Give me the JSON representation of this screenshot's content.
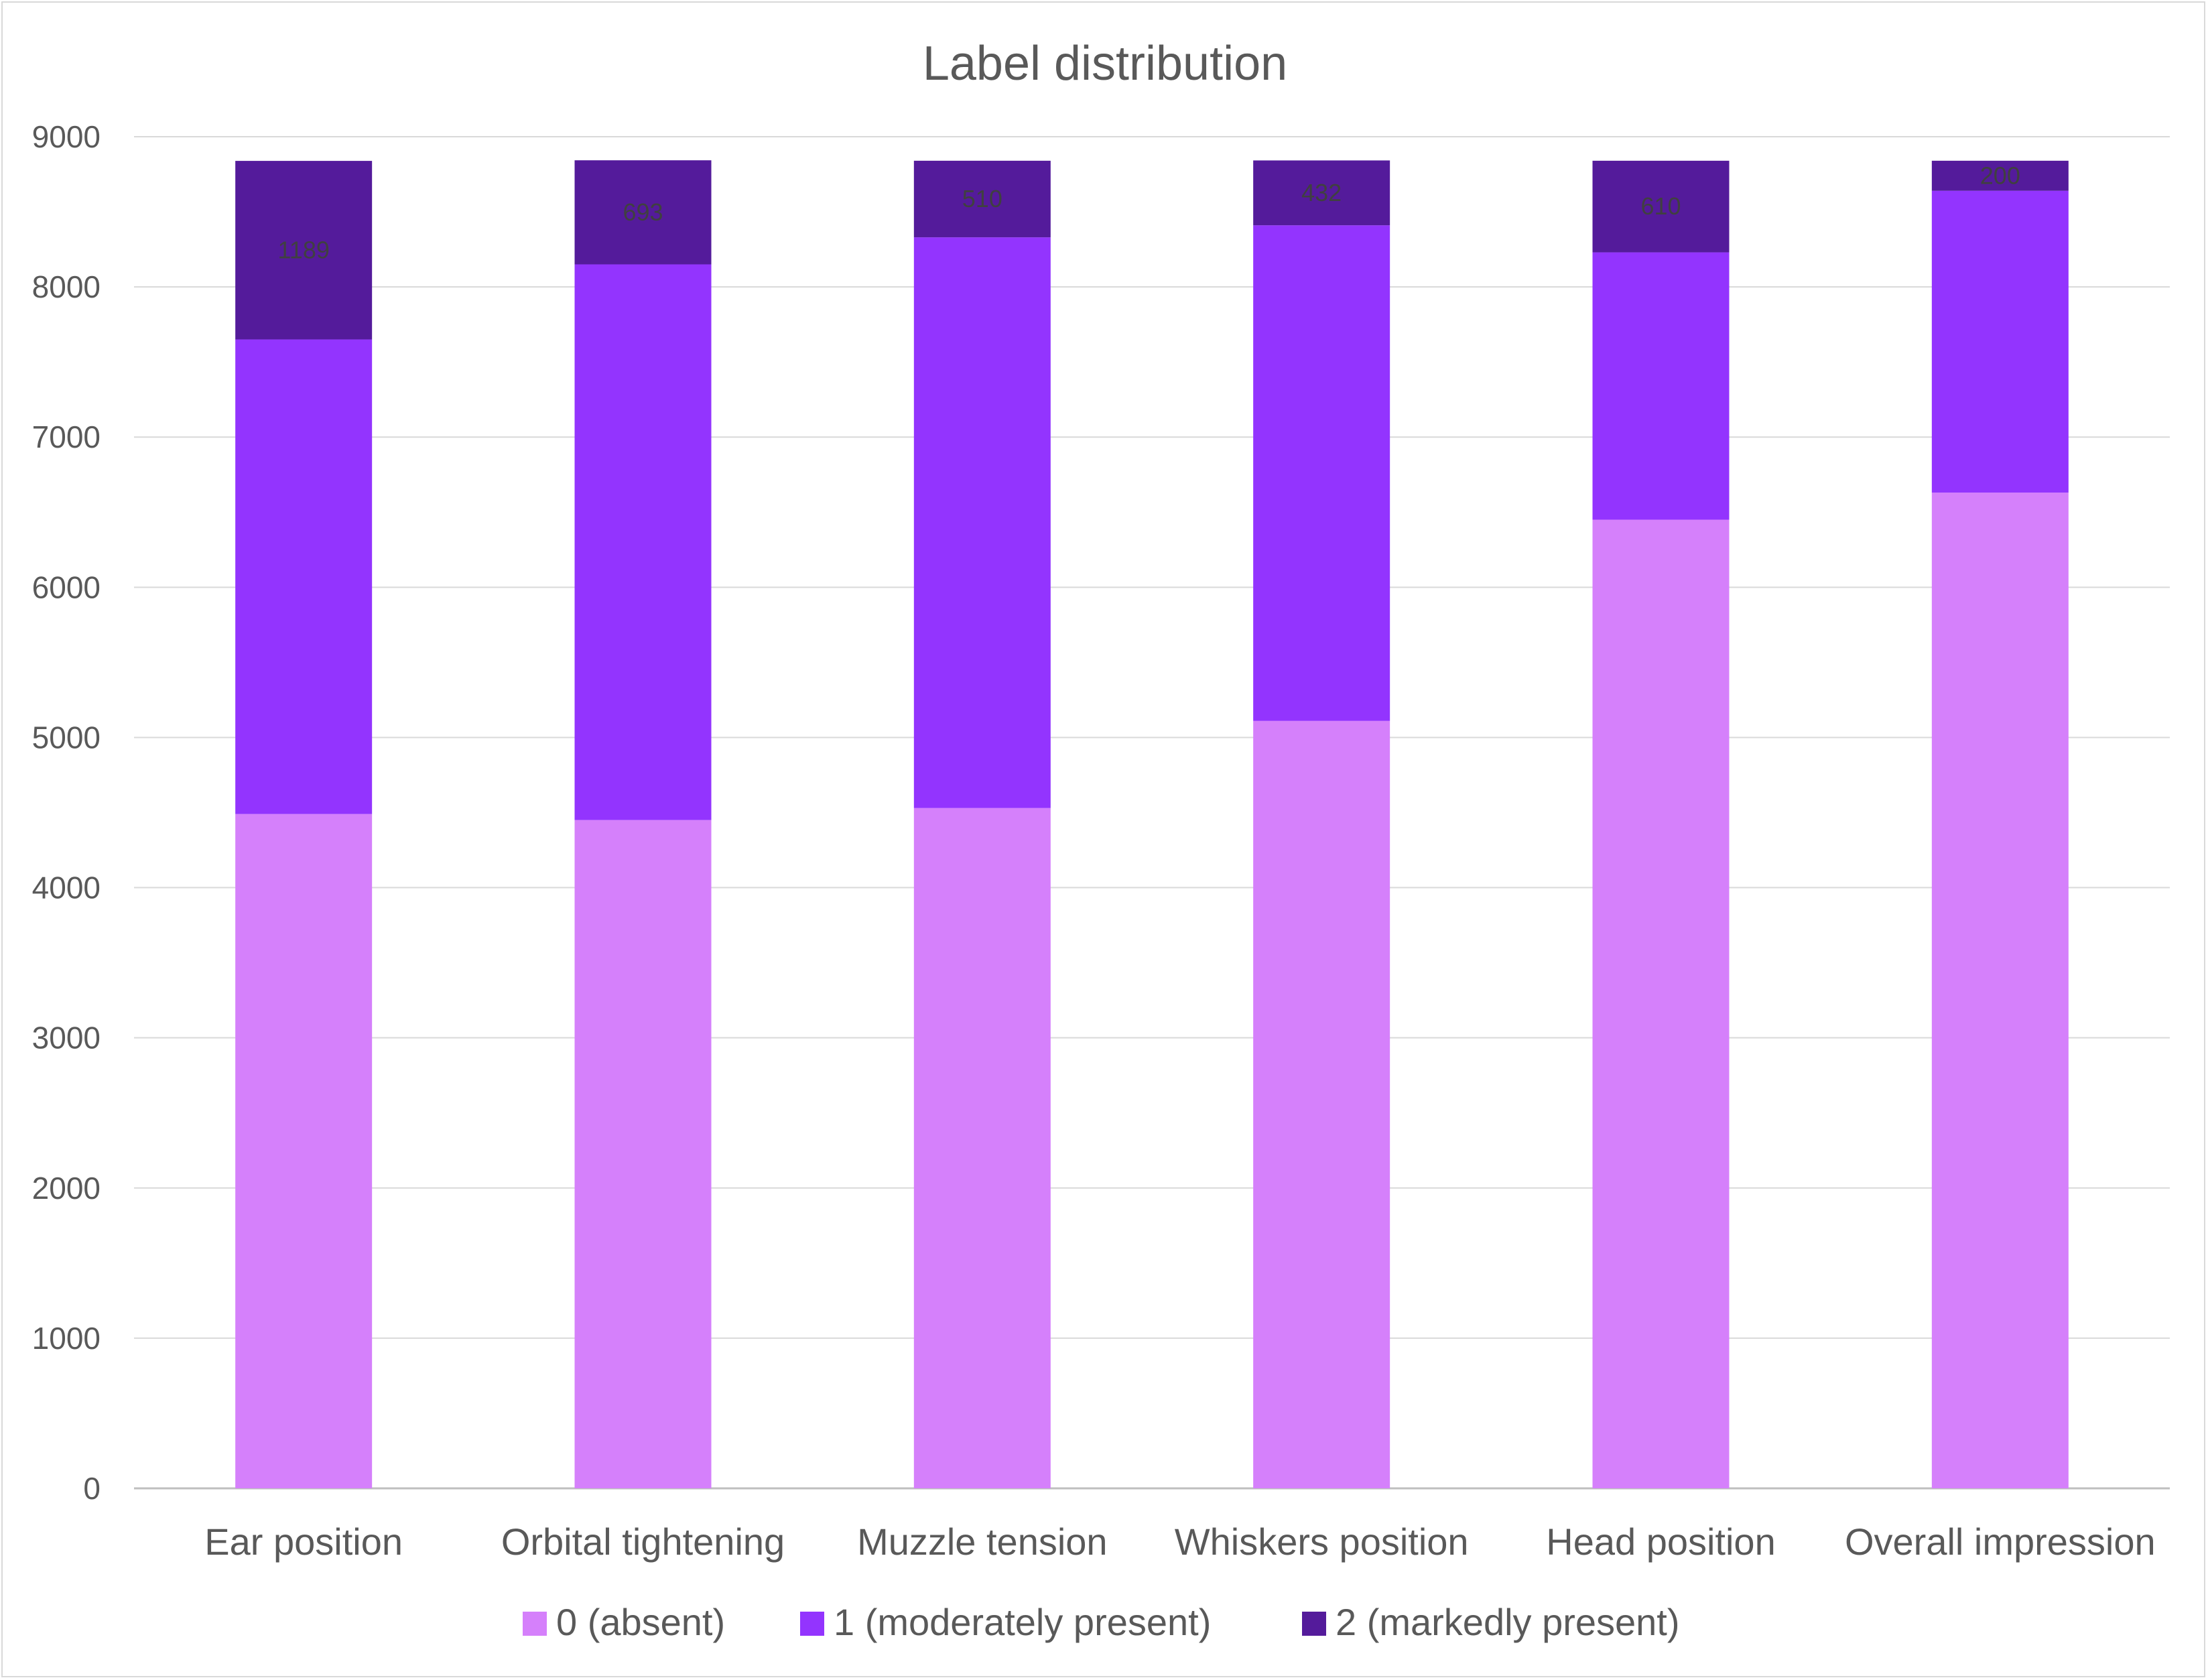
{
  "chart_data": {
    "type": "bar",
    "stacked": true,
    "title": "Label distribution",
    "xlabel": "",
    "ylabel": "",
    "ylim": [
      0,
      9000
    ],
    "yticks": [
      0,
      1000,
      2000,
      3000,
      4000,
      5000,
      6000,
      7000,
      8000,
      9000
    ],
    "grid": true,
    "legend_position": "bottom",
    "categories": [
      "Ear position",
      "Orbital tightening",
      "Muzzle tension",
      "Whiskers position",
      "Head position",
      "Overall impression"
    ],
    "series": [
      {
        "name": "0 (absent)",
        "color": "#d580fb",
        "values": [
          4490,
          4450,
          4530,
          5110,
          6450,
          6630
        ]
      },
      {
        "name": "1 (moderately present)",
        "color": "#9334fe",
        "values": [
          3160,
          3700,
          3800,
          3300,
          1780,
          2010
        ]
      },
      {
        "name": "2 (markedly present)",
        "color": "#541b9b",
        "values": [
          1189,
          693,
          510,
          432,
          610,
          200
        ],
        "data_labels": [
          "1189",
          "693",
          "510",
          "432",
          "610",
          "200"
        ]
      }
    ]
  }
}
